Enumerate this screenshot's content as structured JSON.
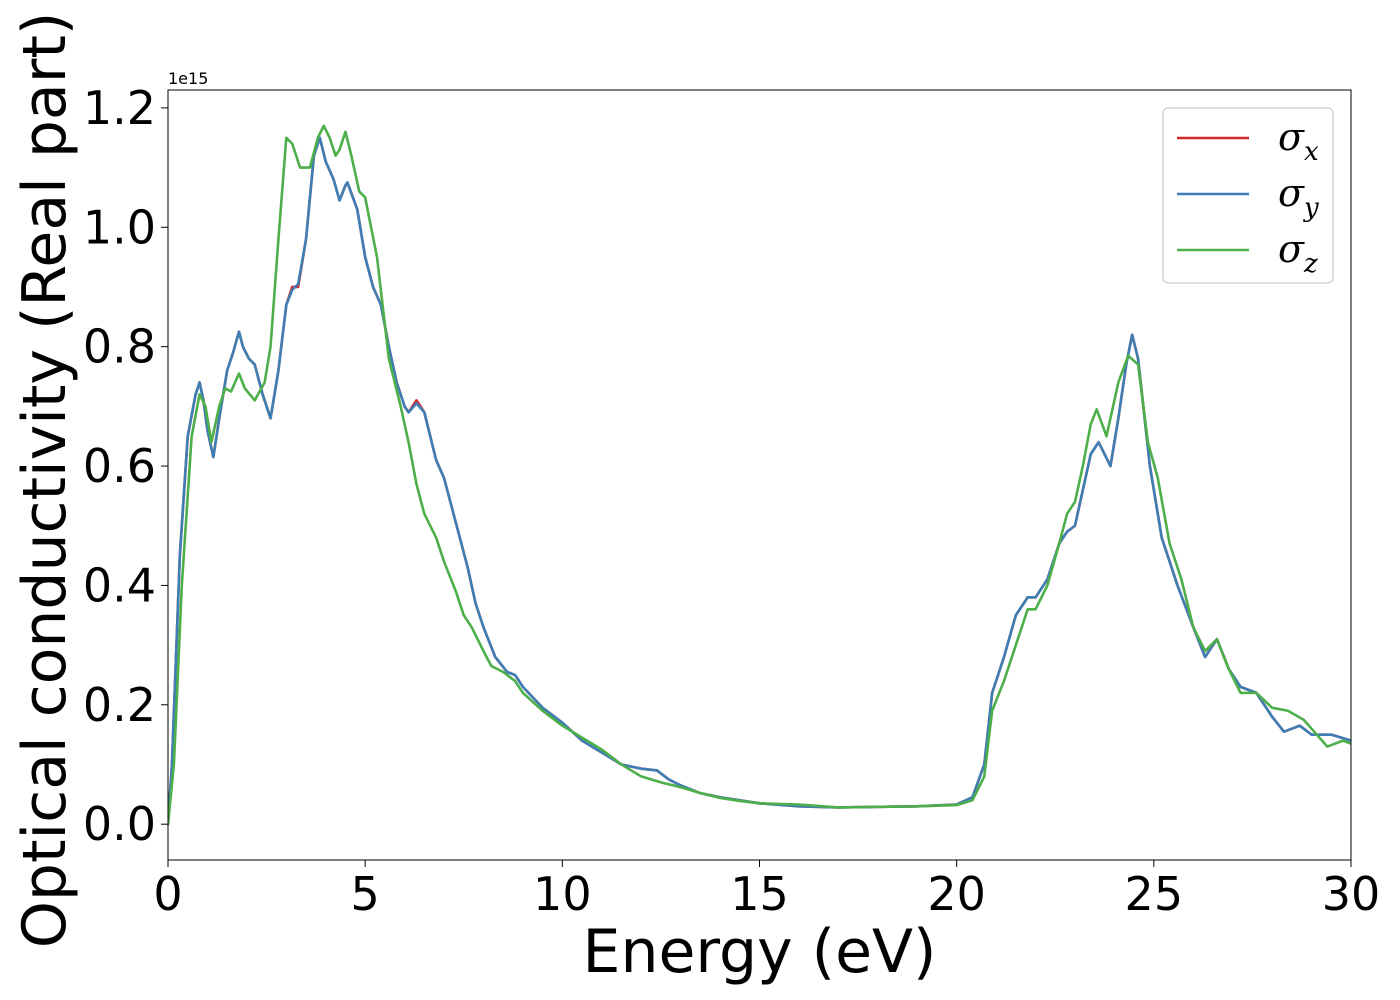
{
  "chart_data": {
    "type": "line",
    "xlabel": "Energy (eV)",
    "ylabel": "Optical conductivity (Real part)",
    "y_offset_label": "1e15",
    "y_scale": 1000000000000000.0,
    "xlim": [
      0,
      30
    ],
    "ylim": [
      -0.06,
      1.23
    ],
    "x_ticks": [
      0,
      5,
      10,
      15,
      20,
      25,
      30
    ],
    "x_tick_labels": [
      "0",
      "5",
      "10",
      "15",
      "20",
      "25",
      "30"
    ],
    "y_ticks": [
      0.0,
      0.2,
      0.4,
      0.6,
      0.8,
      1.0,
      1.2
    ],
    "y_tick_labels": [
      "0.0",
      "0.2",
      "0.4",
      "0.6",
      "0.8",
      "1.0",
      "1.2"
    ],
    "grid": false,
    "legend_position": "top-right",
    "series": [
      {
        "name": "σx",
        "legend_base": "σ",
        "legend_sub": "x",
        "color": "#d62728",
        "points": [
          [
            0,
            0
          ],
          [
            0.1,
            0.1
          ],
          [
            0.3,
            0.45
          ],
          [
            0.5,
            0.65
          ],
          [
            0.7,
            0.72
          ],
          [
            0.8,
            0.74
          ],
          [
            0.9,
            0.71
          ],
          [
            1.0,
            0.66
          ],
          [
            1.15,
            0.615
          ],
          [
            1.3,
            0.68
          ],
          [
            1.5,
            0.76
          ],
          [
            1.65,
            0.79
          ],
          [
            1.8,
            0.825
          ],
          [
            1.9,
            0.8
          ],
          [
            2.05,
            0.78
          ],
          [
            2.2,
            0.77
          ],
          [
            2.4,
            0.72
          ],
          [
            2.6,
            0.68
          ],
          [
            2.8,
            0.76
          ],
          [
            3.0,
            0.87
          ],
          [
            3.15,
            0.9
          ],
          [
            3.3,
            0.9
          ],
          [
            3.5,
            0.98
          ],
          [
            3.7,
            1.12
          ],
          [
            3.85,
            1.15
          ],
          [
            4.0,
            1.11
          ],
          [
            4.2,
            1.08
          ],
          [
            4.35,
            1.045
          ],
          [
            4.5,
            1.07
          ],
          [
            4.55,
            1.075
          ],
          [
            4.8,
            1.03
          ],
          [
            5.0,
            0.95
          ],
          [
            5.2,
            0.9
          ],
          [
            5.4,
            0.87
          ],
          [
            5.6,
            0.8
          ],
          [
            5.8,
            0.74
          ],
          [
            6.0,
            0.7
          ],
          [
            6.1,
            0.69
          ],
          [
            6.3,
            0.71
          ],
          [
            6.5,
            0.69
          ],
          [
            6.8,
            0.61
          ],
          [
            7.0,
            0.58
          ],
          [
            7.2,
            0.53
          ],
          [
            7.4,
            0.48
          ],
          [
            7.6,
            0.43
          ],
          [
            7.8,
            0.37
          ],
          [
            8.0,
            0.33
          ],
          [
            8.3,
            0.28
          ],
          [
            8.6,
            0.255
          ],
          [
            8.8,
            0.25
          ],
          [
            9.0,
            0.23
          ],
          [
            9.5,
            0.195
          ],
          [
            10.0,
            0.17
          ],
          [
            10.5,
            0.14
          ],
          [
            11.0,
            0.12
          ],
          [
            11.5,
            0.1
          ],
          [
            12.0,
            0.093
          ],
          [
            12.4,
            0.09
          ],
          [
            12.7,
            0.075
          ],
          [
            13.0,
            0.065
          ],
          [
            13.5,
            0.052
          ],
          [
            14.0,
            0.045
          ],
          [
            14.5,
            0.04
          ],
          [
            15.0,
            0.035
          ],
          [
            16.0,
            0.03
          ],
          [
            17.0,
            0.028
          ],
          [
            18.0,
            0.029
          ],
          [
            19.0,
            0.03
          ],
          [
            20.0,
            0.033
          ],
          [
            20.4,
            0.045
          ],
          [
            20.7,
            0.1
          ],
          [
            20.9,
            0.22
          ],
          [
            21.2,
            0.28
          ],
          [
            21.5,
            0.35
          ],
          [
            21.8,
            0.38
          ],
          [
            22.0,
            0.38
          ],
          [
            22.3,
            0.41
          ],
          [
            22.6,
            0.47
          ],
          [
            22.8,
            0.49
          ],
          [
            23.0,
            0.5
          ],
          [
            23.2,
            0.56
          ],
          [
            23.4,
            0.62
          ],
          [
            23.6,
            0.64
          ],
          [
            23.9,
            0.6
          ],
          [
            24.1,
            0.68
          ],
          [
            24.3,
            0.77
          ],
          [
            24.45,
            0.82
          ],
          [
            24.6,
            0.78
          ],
          [
            24.9,
            0.6
          ],
          [
            25.2,
            0.48
          ],
          [
            25.6,
            0.4
          ],
          [
            26.0,
            0.33
          ],
          [
            26.3,
            0.28
          ],
          [
            26.6,
            0.31
          ],
          [
            26.9,
            0.26
          ],
          [
            27.2,
            0.23
          ],
          [
            27.6,
            0.22
          ],
          [
            28.0,
            0.18
          ],
          [
            28.3,
            0.155
          ],
          [
            28.7,
            0.165
          ],
          [
            29.0,
            0.15
          ],
          [
            29.5,
            0.15
          ],
          [
            30.0,
            0.14
          ]
        ]
      },
      {
        "name": "σy",
        "legend_base": "σ",
        "legend_sub": "y",
        "color": "#3d7fb5",
        "points": [
          [
            0,
            0
          ],
          [
            0.1,
            0.1
          ],
          [
            0.3,
            0.45
          ],
          [
            0.5,
            0.65
          ],
          [
            0.7,
            0.72
          ],
          [
            0.8,
            0.74
          ],
          [
            0.9,
            0.71
          ],
          [
            1.0,
            0.66
          ],
          [
            1.15,
            0.615
          ],
          [
            1.3,
            0.68
          ],
          [
            1.5,
            0.76
          ],
          [
            1.65,
            0.79
          ],
          [
            1.8,
            0.825
          ],
          [
            1.9,
            0.8
          ],
          [
            2.05,
            0.78
          ],
          [
            2.2,
            0.77
          ],
          [
            2.4,
            0.72
          ],
          [
            2.6,
            0.68
          ],
          [
            2.8,
            0.76
          ],
          [
            3.0,
            0.87
          ],
          [
            3.15,
            0.895
          ],
          [
            3.3,
            0.905
          ],
          [
            3.5,
            0.98
          ],
          [
            3.7,
            1.12
          ],
          [
            3.85,
            1.15
          ],
          [
            4.0,
            1.11
          ],
          [
            4.2,
            1.08
          ],
          [
            4.35,
            1.045
          ],
          [
            4.5,
            1.07
          ],
          [
            4.55,
            1.075
          ],
          [
            4.8,
            1.03
          ],
          [
            5.0,
            0.95
          ],
          [
            5.2,
            0.9
          ],
          [
            5.4,
            0.87
          ],
          [
            5.6,
            0.8
          ],
          [
            5.8,
            0.74
          ],
          [
            6.0,
            0.7
          ],
          [
            6.1,
            0.69
          ],
          [
            6.3,
            0.705
          ],
          [
            6.5,
            0.69
          ],
          [
            6.8,
            0.61
          ],
          [
            7.0,
            0.58
          ],
          [
            7.2,
            0.53
          ],
          [
            7.4,
            0.48
          ],
          [
            7.6,
            0.43
          ],
          [
            7.8,
            0.37
          ],
          [
            8.0,
            0.33
          ],
          [
            8.3,
            0.28
          ],
          [
            8.6,
            0.255
          ],
          [
            8.8,
            0.25
          ],
          [
            9.0,
            0.23
          ],
          [
            9.5,
            0.195
          ],
          [
            10.0,
            0.17
          ],
          [
            10.5,
            0.14
          ],
          [
            11.0,
            0.12
          ],
          [
            11.5,
            0.1
          ],
          [
            12.0,
            0.093
          ],
          [
            12.4,
            0.09
          ],
          [
            12.7,
            0.075
          ],
          [
            13.0,
            0.065
          ],
          [
            13.5,
            0.052
          ],
          [
            14.0,
            0.045
          ],
          [
            14.5,
            0.04
          ],
          [
            15.0,
            0.035
          ],
          [
            16.0,
            0.03
          ],
          [
            17.0,
            0.028
          ],
          [
            18.0,
            0.029
          ],
          [
            19.0,
            0.03
          ],
          [
            20.0,
            0.033
          ],
          [
            20.4,
            0.045
          ],
          [
            20.7,
            0.1
          ],
          [
            20.9,
            0.22
          ],
          [
            21.2,
            0.28
          ],
          [
            21.5,
            0.35
          ],
          [
            21.8,
            0.38
          ],
          [
            22.0,
            0.38
          ],
          [
            22.3,
            0.41
          ],
          [
            22.6,
            0.47
          ],
          [
            22.8,
            0.49
          ],
          [
            23.0,
            0.5
          ],
          [
            23.2,
            0.56
          ],
          [
            23.4,
            0.62
          ],
          [
            23.6,
            0.64
          ],
          [
            23.9,
            0.6
          ],
          [
            24.1,
            0.68
          ],
          [
            24.3,
            0.77
          ],
          [
            24.45,
            0.82
          ],
          [
            24.6,
            0.78
          ],
          [
            24.9,
            0.6
          ],
          [
            25.2,
            0.48
          ],
          [
            25.6,
            0.4
          ],
          [
            26.0,
            0.33
          ],
          [
            26.3,
            0.28
          ],
          [
            26.6,
            0.31
          ],
          [
            26.9,
            0.26
          ],
          [
            27.2,
            0.23
          ],
          [
            27.6,
            0.22
          ],
          [
            28.0,
            0.18
          ],
          [
            28.3,
            0.155
          ],
          [
            28.7,
            0.165
          ],
          [
            29.0,
            0.15
          ],
          [
            29.5,
            0.15
          ],
          [
            30.0,
            0.14
          ]
        ]
      },
      {
        "name": "σz",
        "legend_base": "σ",
        "legend_sub": "z",
        "color": "#4daf4a",
        "points": [
          [
            0,
            0
          ],
          [
            0.15,
            0.1
          ],
          [
            0.35,
            0.4
          ],
          [
            0.6,
            0.65
          ],
          [
            0.8,
            0.72
          ],
          [
            0.95,
            0.7
          ],
          [
            1.1,
            0.64
          ],
          [
            1.3,
            0.7
          ],
          [
            1.45,
            0.73
          ],
          [
            1.6,
            0.725
          ],
          [
            1.8,
            0.755
          ],
          [
            1.95,
            0.73
          ],
          [
            2.2,
            0.71
          ],
          [
            2.45,
            0.74
          ],
          [
            2.6,
            0.8
          ],
          [
            2.8,
            0.98
          ],
          [
            3.0,
            1.15
          ],
          [
            3.15,
            1.14
          ],
          [
            3.35,
            1.1
          ],
          [
            3.6,
            1.1
          ],
          [
            3.8,
            1.15
          ],
          [
            3.95,
            1.17
          ],
          [
            4.1,
            1.15
          ],
          [
            4.25,
            1.12
          ],
          [
            4.35,
            1.13
          ],
          [
            4.5,
            1.16
          ],
          [
            4.65,
            1.12
          ],
          [
            4.85,
            1.06
          ],
          [
            5.0,
            1.05
          ],
          [
            5.3,
            0.95
          ],
          [
            5.6,
            0.78
          ],
          [
            5.9,
            0.7
          ],
          [
            6.1,
            0.64
          ],
          [
            6.3,
            0.57
          ],
          [
            6.5,
            0.52
          ],
          [
            6.8,
            0.48
          ],
          [
            7.0,
            0.44
          ],
          [
            7.3,
            0.39
          ],
          [
            7.5,
            0.35
          ],
          [
            7.7,
            0.33
          ],
          [
            8.0,
            0.29
          ],
          [
            8.2,
            0.265
          ],
          [
            8.5,
            0.255
          ],
          [
            8.8,
            0.24
          ],
          [
            9.0,
            0.22
          ],
          [
            9.5,
            0.19
          ],
          [
            10.0,
            0.165
          ],
          [
            10.5,
            0.145
          ],
          [
            11.0,
            0.125
          ],
          [
            11.5,
            0.1
          ],
          [
            12.0,
            0.08
          ],
          [
            12.5,
            0.07
          ],
          [
            13.0,
            0.062
          ],
          [
            13.5,
            0.052
          ],
          [
            14.0,
            0.044
          ],
          [
            14.5,
            0.039
          ],
          [
            15.0,
            0.035
          ],
          [
            16.0,
            0.033
          ],
          [
            17.0,
            0.028
          ],
          [
            18.0,
            0.029
          ],
          [
            19.0,
            0.03
          ],
          [
            20.0,
            0.032
          ],
          [
            20.4,
            0.04
          ],
          [
            20.7,
            0.08
          ],
          [
            20.9,
            0.19
          ],
          [
            21.2,
            0.24
          ],
          [
            21.5,
            0.3
          ],
          [
            21.8,
            0.36
          ],
          [
            22.0,
            0.36
          ],
          [
            22.3,
            0.4
          ],
          [
            22.6,
            0.47
          ],
          [
            22.8,
            0.52
          ],
          [
            23.0,
            0.54
          ],
          [
            23.2,
            0.6
          ],
          [
            23.4,
            0.67
          ],
          [
            23.55,
            0.695
          ],
          [
            23.8,
            0.65
          ],
          [
            24.1,
            0.74
          ],
          [
            24.35,
            0.785
          ],
          [
            24.6,
            0.77
          ],
          [
            24.85,
            0.64
          ],
          [
            25.1,
            0.58
          ],
          [
            25.4,
            0.47
          ],
          [
            25.7,
            0.41
          ],
          [
            26.0,
            0.33
          ],
          [
            26.3,
            0.29
          ],
          [
            26.6,
            0.31
          ],
          [
            26.9,
            0.26
          ],
          [
            27.2,
            0.22
          ],
          [
            27.6,
            0.22
          ],
          [
            28.0,
            0.195
          ],
          [
            28.4,
            0.19
          ],
          [
            28.8,
            0.175
          ],
          [
            29.0,
            0.16
          ],
          [
            29.4,
            0.13
          ],
          [
            29.8,
            0.14
          ],
          [
            30.0,
            0.135
          ]
        ]
      }
    ]
  }
}
